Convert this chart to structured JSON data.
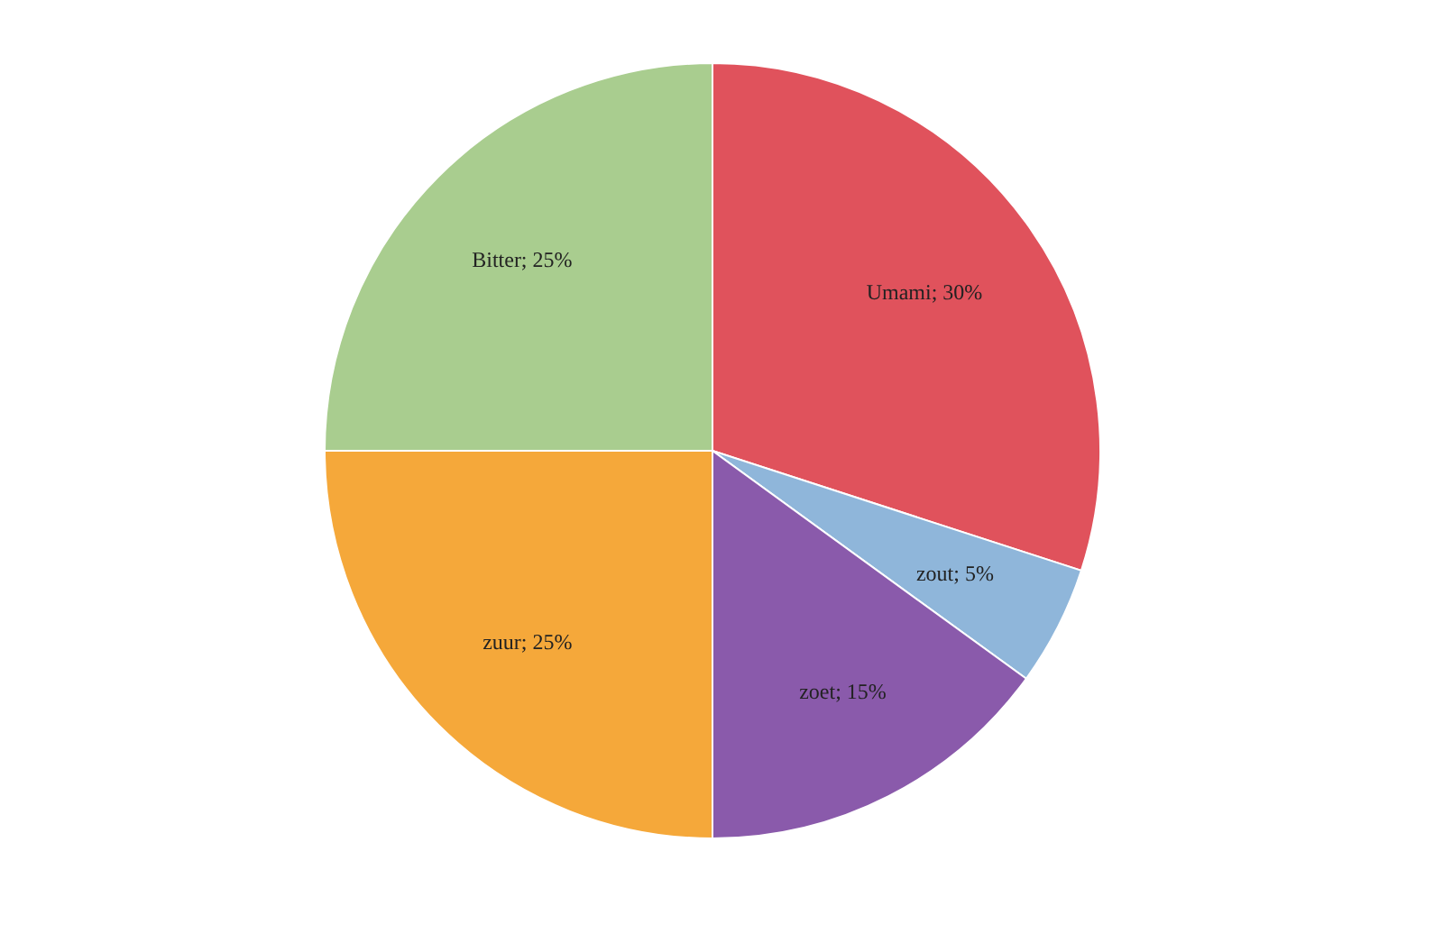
{
  "chart_data": {
    "type": "pie",
    "categories": [
      "Umami",
      "zout",
      "zoet",
      "zuur",
      "Bitter"
    ],
    "values": [
      30,
      5,
      15,
      25,
      25
    ],
    "colors": [
      "#e0525c",
      "#8fb6da",
      "#8a5aab",
      "#f5a83a",
      "#a9cd8f"
    ],
    "value_labels": [
      "; 30%",
      "; 5%",
      "; 15%",
      "; 25%",
      "; 25%"
    ],
    "legend": false
  }
}
